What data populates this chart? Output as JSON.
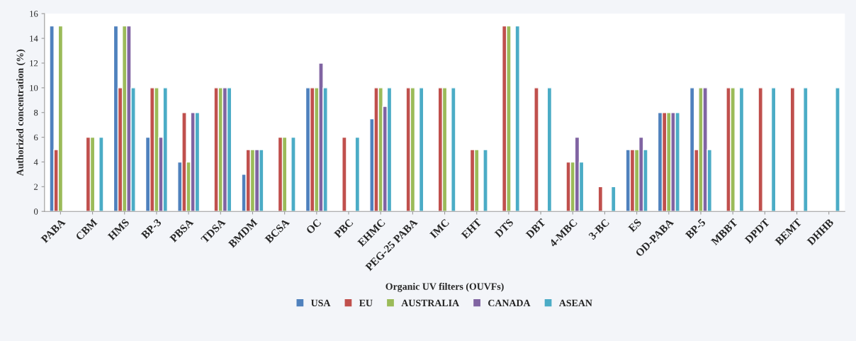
{
  "chart_data": {
    "type": "bar",
    "xlabel": "Organic UV filters (OUVFs)",
    "ylabel": "Authorized concentration (%)",
    "categories": [
      "PABA",
      "CBM",
      "HMS",
      "BP-3",
      "PBSA",
      "TDSA",
      "BMDM",
      "BCSA",
      "OC",
      "PBC",
      "EHMC",
      "PEG-25 PABA",
      "IMC",
      "EHT",
      "DTS",
      "DBT",
      "4-MBC",
      "3-BC",
      "ES",
      "OD-PABA",
      "BP-5",
      "MBBT",
      "DPDT",
      "BEMT",
      "DHHB"
    ],
    "series": [
      {
        "name": "USA",
        "color": "#4f81bd",
        "values": [
          15,
          null,
          15,
          6,
          4,
          null,
          3,
          null,
          10,
          null,
          7.5,
          null,
          null,
          null,
          null,
          null,
          null,
          null,
          5,
          8,
          10,
          null,
          null,
          null,
          null
        ]
      },
      {
        "name": "EU",
        "color": "#c0504d",
        "values": [
          5,
          6,
          10,
          10,
          8,
          10,
          5,
          6,
          10,
          6,
          10,
          10,
          10,
          5,
          15,
          10,
          4,
          2,
          5,
          8,
          5,
          10,
          10,
          10,
          null
        ]
      },
      {
        "name": "AUSTRALIA",
        "color": "#9bbb59",
        "values": [
          15,
          6,
          15,
          10,
          4,
          10,
          5,
          6,
          10,
          null,
          10,
          10,
          10,
          5,
          15,
          null,
          4,
          null,
          5,
          8,
          10,
          10,
          null,
          null,
          null
        ]
      },
      {
        "name": "CANADA",
        "color": "#8064a2",
        "values": [
          null,
          null,
          15,
          6,
          8,
          10,
          5,
          null,
          12,
          null,
          8.5,
          null,
          null,
          null,
          null,
          null,
          6,
          null,
          6,
          8,
          10,
          null,
          null,
          null,
          null
        ]
      },
      {
        "name": "ASEAN",
        "color": "#4bacc6",
        "values": [
          null,
          6,
          10,
          10,
          8,
          10,
          5,
          6,
          10,
          6,
          10,
          10,
          10,
          5,
          15,
          10,
          4,
          2,
          5,
          8,
          5,
          10,
          10,
          10,
          10
        ]
      }
    ],
    "ylim": [
      0,
      16
    ],
    "yticks": [
      0,
      2,
      4,
      6,
      8,
      10,
      12,
      14,
      16
    ],
    "grid": false,
    "legend": "bottom"
  }
}
